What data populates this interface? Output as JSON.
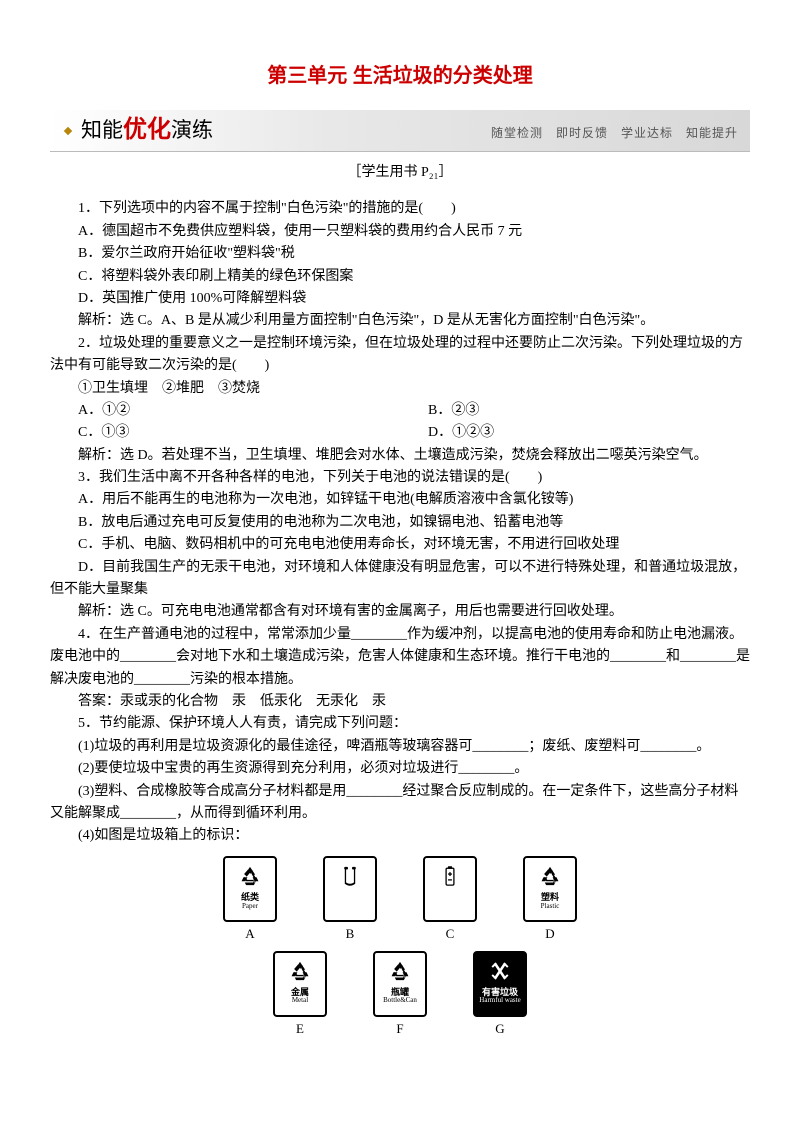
{
  "title": "第三单元 生活垃圾的分类处理",
  "banner": {
    "pre": "知能",
    "em": "优化",
    "post": "演练",
    "right": "随堂检测　即时反馈　学业达标　知能提升"
  },
  "subref": "［学生用书 P₂₁］",
  "q1": {
    "stem": "1．下列选项中的内容不属于控制\"白色污染\"的措施的是(　　)",
    "a": "A．德国超市不免费供应塑料袋，使用一只塑料袋的费用约合人民币 7 元",
    "b": "B．爱尔兰政府开始征收\"塑料袋\"税",
    "c": "C．将塑料袋外表印刷上精美的绿色环保图案",
    "d": "D．英国推广使用 100%可降解塑料袋",
    "ans": "解析：选 C。A、B 是从减少利用量方面控制\"白色污染\"，D 是从无害化方面控制\"白色污染\"。"
  },
  "q2": {
    "stem": "2．垃圾处理的重要意义之一是控制环境污染，但在垃圾处理的过程中还要防止二次污染。下列处理垃圾的方法中有可能导致二次污染的是(　　)",
    "items": "①卫生填埋　②堆肥　③焚烧",
    "a": "A．①②",
    "b": "B．②③",
    "c": "C．①③",
    "d": "D．①②③",
    "ans": "解析：选 D。若处理不当，卫生填埋、堆肥会对水体、土壤造成污染，焚烧会释放出二噁英污染空气。"
  },
  "q3": {
    "stem": "3．我们生活中离不开各种各样的电池，下列关于电池的说法错误的是(　　)",
    "a": "A．用后不能再生的电池称为一次电池，如锌锰干电池(电解质溶液中含氯化铵等)",
    "b": "B．放电后通过充电可反复使用的电池称为二次电池，如镍镉电池、铅蓄电池等",
    "c": "C．手机、电脑、数码相机中的可充电电池使用寿命长，对环境无害，不用进行回收处理",
    "d": "D．目前我国生产的无汞干电池，对环境和人体健康没有明显危害，可以不进行特殊处理，和普通垃圾混放，但不能大量聚集",
    "ans": "解析：选 C。可充电电池通常都含有对环境有害的金属离子，用后也需要进行回收处理。"
  },
  "q4": {
    "stem": "4．在生产普通电池的过程中，常常添加少量________作为缓冲剂，以提高电池的使用寿命和防止电池漏液。废电池中的________会对地下水和土壤造成污染，危害人体健康和生态环境。推行干电池的________和________是解决废电池的________污染的根本措施。",
    "ans": "答案：汞或汞的化合物　汞　低汞化　无汞化　汞"
  },
  "q5": {
    "stem": "5．节约能源、保护环境人人有责，请完成下列问题：",
    "p1": "(1)垃圾的再利用是垃圾资源化的最佳途径，啤酒瓶等玻璃容器可________；废纸、废塑料可________。",
    "p2": "(2)要使垃圾中宝贵的再生资源得到充分利用，必须对垃圾进行________。",
    "p3": "(3)塑料、合成橡胶等合成高分子材料都是用________经过聚合反应制成的。在一定条件下，这些高分子材料又能解聚成________，从而得到循环利用。",
    "p4": "(4)如图是垃圾箱上的标识："
  },
  "bins": {
    "row1": [
      {
        "letter": "A",
        "cn": "纸类",
        "en": "Paper",
        "kind": "paper"
      },
      {
        "letter": "B",
        "cn": "",
        "en": "",
        "kind": "plasticbag"
      },
      {
        "letter": "C",
        "cn": "",
        "en": "",
        "kind": "battery"
      },
      {
        "letter": "D",
        "cn": "塑料",
        "en": "Plastic",
        "kind": "plastic"
      }
    ],
    "row2": [
      {
        "letter": "E",
        "cn": "金属",
        "en": "Metal",
        "kind": "metal"
      },
      {
        "letter": "F",
        "cn": "瓶罐",
        "en": "Bottle&Can",
        "kind": "bottle"
      },
      {
        "letter": "G",
        "cn": "有害垃圾",
        "en": "Harmful waste",
        "kind": "harmful",
        "dark": true
      }
    ]
  },
  "colors": {
    "title": "#cc0000",
    "text": "#000000",
    "banner_right": "#555555"
  }
}
